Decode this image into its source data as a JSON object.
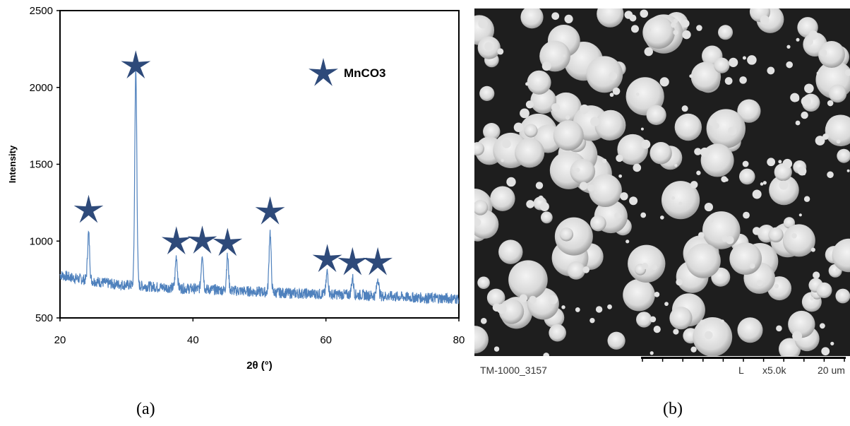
{
  "chart_data": {
    "type": "line",
    "panel": "(a)",
    "xlabel": "2θ (°)",
    "ylabel": "Intensity",
    "xlim": [
      20,
      80
    ],
    "ylim": [
      500,
      2500
    ],
    "xticks": [
      20,
      40,
      60,
      80
    ],
    "yticks": [
      500,
      1000,
      1500,
      2000,
      2500
    ],
    "line_color": "#4f81bd",
    "marker_color": "#2e4a7a",
    "legend": {
      "label": "MnCO3",
      "position": "top-right"
    },
    "baseline": {
      "x": [
        20,
        22,
        25,
        28,
        30,
        35,
        40,
        45,
        50,
        55,
        60,
        65,
        70,
        75,
        80
      ],
      "y": [
        780,
        760,
        740,
        720,
        715,
        700,
        690,
        680,
        670,
        660,
        655,
        650,
        640,
        630,
        625
      ]
    },
    "peaks": [
      {
        "x": 24.3,
        "y": 1050
      },
      {
        "x": 31.4,
        "y": 2110
      },
      {
        "x": 37.5,
        "y": 900
      },
      {
        "x": 41.4,
        "y": 920
      },
      {
        "x": 45.2,
        "y": 900
      },
      {
        "x": 51.6,
        "y": 1060
      },
      {
        "x": 60.2,
        "y": 800
      },
      {
        "x": 64.0,
        "y": 760
      },
      {
        "x": 67.8,
        "y": 760
      }
    ],
    "star_markers": [
      {
        "x": 24.3,
        "y": 1200
      },
      {
        "x": 31.4,
        "y": 2140
      },
      {
        "x": 37.5,
        "y": 995
      },
      {
        "x": 41.4,
        "y": 1000
      },
      {
        "x": 45.2,
        "y": 985
      },
      {
        "x": 51.6,
        "y": 1190
      },
      {
        "x": 60.2,
        "y": 880
      },
      {
        "x": 64.0,
        "y": 860
      },
      {
        "x": 67.8,
        "y": 860
      }
    ]
  },
  "sem": {
    "panel": "(b)",
    "instrument_label": "TM-1000_3157",
    "mode": "L",
    "magnification": "x5.0k",
    "scale_text": "20 um"
  },
  "captions": {
    "a": "(a)",
    "b": "(b)"
  }
}
